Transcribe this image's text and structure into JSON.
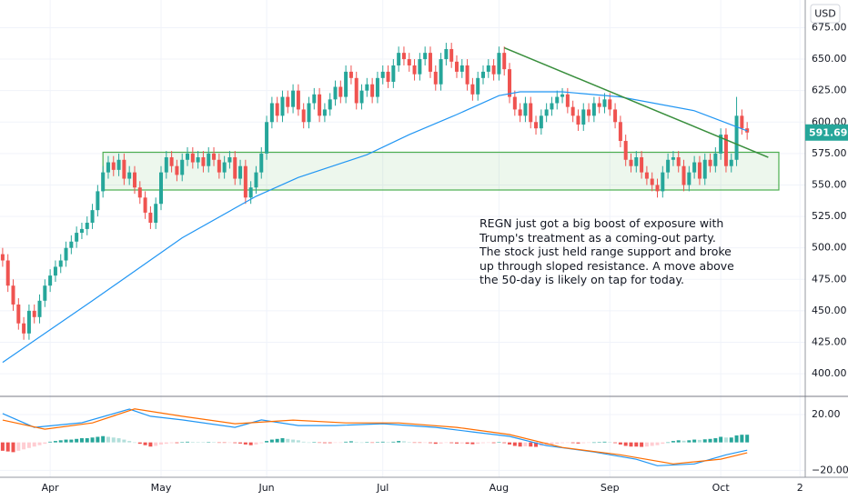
{
  "chart_data": {
    "type": "candlestick",
    "currency": "USD",
    "annotation": "REGN just got a big boost of exposure with Trump's treatment as a coming-out party. The stock just held range support and broke up through sloped resistance. A move above the 50-day is likely on tap for today.",
    "up_color": "#26a69a",
    "down_color": "#ef5350",
    "grid": true,
    "xlim": [
      -0.5,
      152
    ],
    "xticks": [
      {
        "value": 9,
        "label": "Apr"
      },
      {
        "value": 30,
        "label": "May"
      },
      {
        "value": 50,
        "label": "Jun"
      },
      {
        "value": 72,
        "label": "Jul"
      },
      {
        "value": 94,
        "label": "Aug"
      },
      {
        "value": 115,
        "label": "Sep"
      },
      {
        "value": 136,
        "label": "Oct"
      },
      {
        "value": 151,
        "label": "2"
      }
    ],
    "ylim": [
      382,
      697
    ],
    "yticks": [
      {
        "value": 400,
        "label": "400.00"
      },
      {
        "value": 425,
        "label": "425.00"
      },
      {
        "value": 450,
        "label": "450.00"
      },
      {
        "value": 475,
        "label": "475.00"
      },
      {
        "value": 500,
        "label": "500.00"
      },
      {
        "value": 525,
        "label": "525.00"
      },
      {
        "value": 550,
        "label": "550.00"
      },
      {
        "value": 575,
        "label": "575.00"
      },
      {
        "value": 600,
        "label": "600.00"
      },
      {
        "value": 625,
        "label": "625.00"
      },
      {
        "value": 650,
        "label": "650.00"
      },
      {
        "value": 675,
        "label": "675.00"
      }
    ],
    "open": [
      495,
      490,
      470,
      455,
      440,
      432,
      450,
      445,
      458,
      470,
      478,
      485,
      490,
      500,
      505,
      512,
      515,
      520,
      530,
      545,
      560,
      568,
      562,
      570,
      555,
      560,
      548,
      540,
      528,
      520,
      535,
      560,
      572,
      565,
      558,
      570,
      575,
      568,
      572,
      565,
      575,
      570,
      560,
      568,
      572,
      555,
      565,
      540,
      548,
      560,
      575,
      600,
      615,
      605,
      620,
      612,
      625,
      610,
      600,
      615,
      622,
      605,
      610,
      618,
      628,
      620,
      640,
      635,
      615,
      625,
      630,
      620,
      635,
      640,
      632,
      645,
      655,
      650,
      645,
      638,
      650,
      655,
      640,
      630,
      650,
      658,
      648,
      640,
      645,
      630,
      622,
      635,
      640,
      645,
      638,
      655,
      642,
      620,
      610,
      605,
      615,
      600,
      595,
      605,
      610,
      615,
      620,
      622,
      612,
      605,
      598,
      610,
      605,
      615,
      612,
      618,
      610,
      600,
      585,
      570,
      565,
      572,
      560,
      555,
      550,
      545,
      560,
      570,
      572,
      565,
      550,
      560,
      568,
      555,
      570,
      565,
      575,
      590,
      565,
      570,
      605,
      595
    ],
    "high": [
      500,
      495,
      475,
      460,
      445,
      455,
      455,
      463,
      475,
      483,
      490,
      495,
      505,
      510,
      517,
      520,
      525,
      535,
      550,
      565,
      573,
      573,
      575,
      575,
      565,
      565,
      553,
      545,
      533,
      540,
      565,
      577,
      577,
      570,
      575,
      580,
      580,
      577,
      577,
      580,
      580,
      575,
      573,
      577,
      577,
      570,
      570,
      553,
      565,
      580,
      605,
      620,
      620,
      625,
      625,
      630,
      630,
      615,
      620,
      627,
      627,
      615,
      623,
      633,
      633,
      645,
      645,
      640,
      630,
      635,
      635,
      640,
      645,
      645,
      650,
      660,
      660,
      655,
      650,
      655,
      660,
      660,
      645,
      655,
      663,
      663,
      653,
      650,
      650,
      635,
      640,
      645,
      650,
      650,
      660,
      660,
      647,
      625,
      615,
      620,
      620,
      605,
      610,
      615,
      620,
      625,
      627,
      627,
      617,
      610,
      615,
      615,
      620,
      620,
      623,
      623,
      615,
      605,
      590,
      575,
      577,
      577,
      565,
      560,
      555,
      565,
      575,
      577,
      577,
      570,
      565,
      573,
      573,
      575,
      575,
      580,
      595,
      595,
      575,
      620,
      610,
      600
    ],
    "low": [
      485,
      465,
      450,
      435,
      427,
      427,
      440,
      440,
      453,
      465,
      473,
      480,
      485,
      495,
      500,
      507,
      510,
      515,
      525,
      540,
      555,
      557,
      557,
      550,
      550,
      543,
      535,
      523,
      515,
      515,
      530,
      555,
      560,
      553,
      553,
      565,
      563,
      563,
      560,
      560,
      565,
      555,
      555,
      563,
      550,
      550,
      535,
      535,
      543,
      555,
      570,
      595,
      600,
      600,
      607,
      607,
      605,
      595,
      595,
      610,
      600,
      600,
      605,
      613,
      615,
      615,
      630,
      610,
      610,
      620,
      615,
      615,
      630,
      627,
      627,
      640,
      645,
      640,
      633,
      633,
      645,
      635,
      625,
      625,
      645,
      643,
      635,
      635,
      625,
      617,
      617,
      630,
      635,
      633,
      633,
      637,
      615,
      605,
      600,
      600,
      595,
      590,
      590,
      600,
      605,
      610,
      615,
      607,
      600,
      593,
      593,
      600,
      600,
      607,
      607,
      605,
      595,
      580,
      565,
      560,
      560,
      555,
      550,
      545,
      540,
      540,
      555,
      565,
      560,
      545,
      545,
      555,
      550,
      550,
      560,
      560,
      570,
      560,
      560,
      565,
      590,
      586
    ],
    "close": [
      490,
      470,
      455,
      440,
      432,
      450,
      445,
      458,
      470,
      478,
      485,
      490,
      500,
      505,
      512,
      515,
      520,
      530,
      545,
      560,
      568,
      562,
      570,
      555,
      560,
      548,
      540,
      528,
      520,
      535,
      560,
      572,
      565,
      558,
      570,
      575,
      568,
      572,
      565,
      575,
      570,
      560,
      568,
      572,
      555,
      565,
      540,
      548,
      560,
      575,
      600,
      615,
      605,
      620,
      612,
      625,
      610,
      600,
      615,
      622,
      605,
      610,
      618,
      628,
      620,
      640,
      635,
      615,
      625,
      630,
      620,
      635,
      640,
      632,
      645,
      655,
      650,
      645,
      638,
      650,
      655,
      640,
      630,
      650,
      658,
      648,
      640,
      645,
      630,
      622,
      635,
      640,
      645,
      638,
      655,
      642,
      620,
      610,
      605,
      615,
      600,
      595,
      605,
      610,
      615,
      620,
      622,
      612,
      605,
      598,
      610,
      605,
      615,
      612,
      618,
      610,
      600,
      585,
      570,
      565,
      572,
      560,
      555,
      550,
      545,
      560,
      570,
      572,
      565,
      550,
      560,
      568,
      555,
      570,
      565,
      575,
      590,
      565,
      570,
      605,
      595,
      591.69
    ],
    "moving_average": {
      "color": "#2196f3",
      "x": [
        0,
        17,
        34,
        48,
        56,
        69,
        77,
        86,
        94,
        98,
        106,
        117,
        131,
        141
      ],
      "values": [
        409,
        458,
        508,
        541,
        556,
        574,
        590,
        606,
        621,
        624,
        624,
        620,
        609,
        593
      ]
    },
    "range_box": {
      "color": "#4caf50",
      "x": [
        19,
        147
      ],
      "y": [
        546,
        576
      ]
    },
    "trendline": {
      "color": "#388e3c",
      "x": [
        95,
        145
      ],
      "y": [
        659,
        572
      ]
    },
    "macd": {
      "ylim": [
        -25,
        33
      ],
      "yticks": [
        {
          "value": 20,
          "label": "20.00"
        },
        {
          "value": -20,
          "label": "−20.00"
        }
      ],
      "histogram": [
        -6,
        -6.5,
        -7,
        -6,
        -5,
        -4,
        -3,
        -2,
        -1,
        0.5,
        1,
        1.5,
        2,
        2,
        2.5,
        3,
        3,
        3.5,
        4,
        4.5,
        4,
        3.5,
        3,
        2,
        1,
        0,
        -1,
        -2,
        -3,
        -2.5,
        -1.5,
        -1,
        -0.5,
        -0.5,
        0.3,
        0.5,
        0.4,
        0.3,
        0.2,
        0.3,
        0.2,
        -0.2,
        -0.3,
        -0.2,
        -0.5,
        -0.8,
        -1.5,
        -2,
        -1.5,
        -0.5,
        1,
        2,
        2.5,
        3,
        2.5,
        2,
        1.5,
        0.5,
        0,
        0.3,
        -0.3,
        -0.5,
        -0.5,
        -0.3,
        -0.2,
        0.5,
        0.8,
        0.3,
        0,
        0.2,
        -0.1,
        0.3,
        0.5,
        0.3,
        0.5,
        1,
        0.8,
        0.3,
        -0.2,
        -0.3,
        -0.1,
        -0.5,
        -1,
        -0.8,
        -0.3,
        -0.5,
        -0.8,
        -0.7,
        -1,
        -1.3,
        -1,
        -0.5,
        -0.3,
        -0.5,
        0.2,
        -0.5,
        -1.5,
        -2.5,
        -3,
        -2.8,
        -3,
        -3.2,
        -2.5,
        -2,
        -1.5,
        -1,
        -0.5,
        -0.3,
        -0.5,
        -0.8,
        -0.5,
        -0.3,
        0,
        0.3,
        0.5,
        0.3,
        -0.5,
        -1.5,
        -2.5,
        -3,
        -3,
        -3.2,
        -3,
        -2.5,
        -2,
        -1,
        0,
        1,
        1.5,
        1.2,
        1.5,
        2,
        1.8,
        2.2,
        2.5,
        3,
        4,
        3.5,
        3.5,
        5,
        5.5,
        5.5
      ],
      "series": [
        {
          "color": "#2196f3",
          "x": [
            0,
            6,
            15,
            24,
            28,
            34,
            44,
            49,
            56,
            63,
            72,
            82,
            89,
            96,
            103,
            112,
            120,
            124,
            131,
            137,
            141
          ],
          "values": [
            20.7,
            10.8,
            14.1,
            23.9,
            18.7,
            16.1,
            10.8,
            16.1,
            12.1,
            12.1,
            13.4,
            10.8,
            7.5,
            4.3,
            -2.3,
            -6.9,
            -12.1,
            -16.7,
            -15.4,
            -8.9,
            -5.6
          ]
        },
        {
          "color": "#ff6d00",
          "x": [
            0,
            8,
            17,
            25,
            34,
            44,
            55,
            65,
            75,
            86,
            96,
            106,
            117,
            127,
            136,
            141
          ],
          "values": [
            16,
            9.5,
            14,
            24,
            18.7,
            13.4,
            16,
            14,
            14,
            10.8,
            5.6,
            -3.6,
            -8.9,
            -15.4,
            -12,
            -7.5
          ]
        }
      ]
    }
  }
}
